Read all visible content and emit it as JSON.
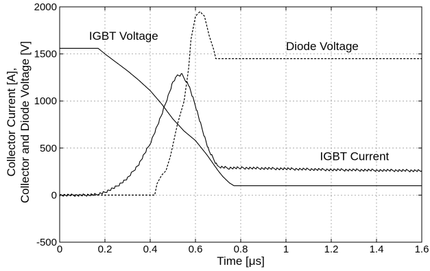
{
  "chart_data": {
    "type": "line",
    "title": "",
    "xlabel": "Time [μs]",
    "ylabel_lines": [
      "Collector Current [A],",
      "Collector and Diode Voltage [V]"
    ],
    "xlim": [
      0,
      1.6
    ],
    "ylim": [
      -500,
      2000
    ],
    "x_ticks": [
      "0",
      "0.2",
      "0.4",
      "0.6",
      "0.8",
      "1",
      "1.2",
      "1.4",
      "1.6"
    ],
    "y_ticks": [
      "-500",
      "0",
      "500",
      "1000",
      "1500",
      "2000"
    ],
    "grid": true,
    "series": [
      {
        "name": "IGBT Voltage",
        "style": "solid",
        "x": [
          0,
          0.17,
          0.2,
          0.25,
          0.3,
          0.35,
          0.4,
          0.45,
          0.5,
          0.55,
          0.6,
          0.65,
          0.7,
          0.72,
          0.75,
          0.77,
          0.8,
          1.0,
          1.2,
          1.4,
          1.6
        ],
        "y": [
          1560,
          1560,
          1500,
          1410,
          1320,
          1220,
          1110,
          970,
          810,
          680,
          580,
          430,
          260,
          200,
          130,
          100,
          100,
          100,
          100,
          100,
          100
        ]
      },
      {
        "name": "IGBT Current",
        "style": "solid-noisy",
        "x": [
          0,
          0.1,
          0.17,
          0.2,
          0.25,
          0.3,
          0.35,
          0.4,
          0.45,
          0.5,
          0.52,
          0.54,
          0.57,
          0.6,
          0.63,
          0.66,
          0.7,
          0.75,
          0.8,
          1.0,
          1.2,
          1.4,
          1.6
        ],
        "y": [
          0,
          0,
          10,
          30,
          90,
          180,
          330,
          550,
          850,
          1200,
          1270,
          1280,
          1170,
          950,
          700,
          470,
          300,
          290,
          290,
          280,
          270,
          265,
          260
        ]
      },
      {
        "name": "Diode Voltage",
        "style": "dashed",
        "x": [
          0,
          0.3,
          0.42,
          0.43,
          0.45,
          0.47,
          0.49,
          0.52,
          0.55,
          0.57,
          0.58,
          0.6,
          0.62,
          0.64,
          0.66,
          0.68,
          0.69,
          0.72,
          1.0,
          1.2,
          1.4,
          1.6
        ],
        "y": [
          0,
          0,
          0,
          120,
          210,
          260,
          420,
          750,
          1000,
          1350,
          1650,
          1900,
          1950,
          1900,
          1700,
          1550,
          1450,
          1450,
          1450,
          1450,
          1450,
          1450
        ]
      }
    ],
    "annotations": [
      {
        "text": "IGBT Voltage",
        "x": 0.13,
        "y": 1650
      },
      {
        "text": "Diode Voltage",
        "x": 1.0,
        "y": 1540
      },
      {
        "text": "IGBT Current",
        "x": 1.15,
        "y": 370
      }
    ]
  }
}
